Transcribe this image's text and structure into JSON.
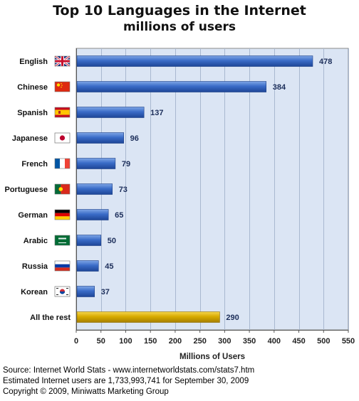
{
  "chart_data": {
    "type": "bar",
    "orientation": "horizontal",
    "title": "Top 10 Languages in the Internet",
    "subtitle": "millions of users",
    "xlabel": "Millions of Users",
    "ylabel": "",
    "xlim": [
      0,
      550
    ],
    "xticks": [
      "0",
      "50",
      "100",
      "150",
      "200",
      "250",
      "300",
      "350",
      "400",
      "450",
      "500",
      "550"
    ],
    "grid": true,
    "categories": [
      "English",
      "Chinese",
      "Spanish",
      "Japanese",
      "French",
      "Portuguese",
      "German",
      "Arabic",
      "Russia",
      "Korean",
      "All the rest"
    ],
    "values": [
      478,
      384,
      137,
      96,
      79,
      73,
      65,
      50,
      45,
      37,
      290
    ],
    "value_labels": [
      "478",
      "384",
      "137",
      "96",
      "79",
      "73",
      "65",
      "50",
      "45",
      "37",
      "290"
    ],
    "flags": [
      "uk-flag-icon",
      "china-flag-icon",
      "spain-flag-icon",
      "japan-flag-icon",
      "france-flag-icon",
      "portugal-flag-icon",
      "germany-flag-icon",
      "saudi-flag-icon",
      "russia-flag-icon",
      "korea-flag-icon",
      ""
    ],
    "bar_colors": [
      "#2f62c0",
      "#2f62c0",
      "#2f62c0",
      "#2f62c0",
      "#2f62c0",
      "#2f62c0",
      "#2f62c0",
      "#2f62c0",
      "#2f62c0",
      "#2f62c0",
      "#d4a800"
    ],
    "plot_background": "#dbe5f4"
  },
  "footer": {
    "line1": "Source: Internet World Stats - www.internetworldstats.com/stats7.htm",
    "line2": "Estimated Internet users are 1,733,993,741 for September 30, 2009",
    "line3": "Copyright © 2009, Miniwatts Marketing Group"
  }
}
